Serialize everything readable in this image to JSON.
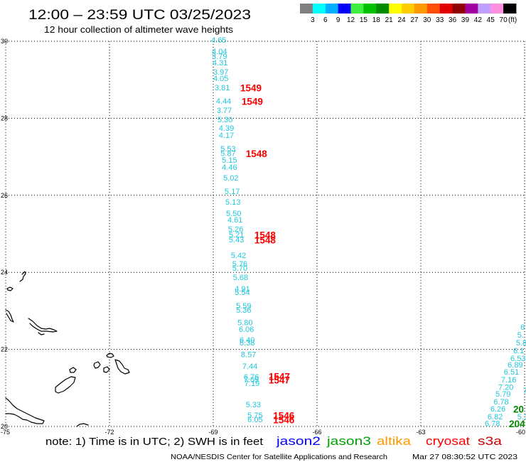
{
  "header": {
    "title": "12:00 – 23:59 UTC 03/25/2023",
    "subtitle": "12 hour collection of altimeter wave heights"
  },
  "legend": {
    "unit": "(ft)",
    "labels": [
      "3",
      "6",
      "9",
      "12",
      "15",
      "18",
      "21",
      "24",
      "27",
      "30",
      "33",
      "36",
      "39",
      "42",
      "45",
      "70"
    ],
    "colors": [
      "#808080",
      "#00ffff",
      "#00b0ff",
      "#0000ff",
      "#40f040",
      "#00c000",
      "#008c00",
      "#ffff00",
      "#ffcc00",
      "#ff9900",
      "#ff5000",
      "#e00000",
      "#900000",
      "#a000a0",
      "#c0a0ff",
      "#ff90e0",
      "#000000"
    ]
  },
  "chart_data": {
    "type": "scatter",
    "xlim": [
      -75,
      -60
    ],
    "ylim": [
      20,
      30
    ],
    "x_ticks": [
      "-75",
      "-72",
      "-69",
      "-66",
      "-63",
      "-60"
    ],
    "y_ticks": [
      "30",
      "28",
      "26",
      "24",
      "22",
      "20"
    ],
    "grid": true,
    "value_color": "#1ec8dc",
    "series": [
      {
        "time_color": "#ff0000",
        "points": [
          {
            "lon": -69.06,
            "lat": 30.02,
            "value": "4.65"
          },
          {
            "lon": -69.04,
            "lat": 29.72,
            "value": "4.04"
          },
          {
            "lon": -69.04,
            "lat": 29.59,
            "value": "3.79"
          },
          {
            "lon": -69.02,
            "lat": 29.43,
            "value": "4.31"
          },
          {
            "lon": -69.0,
            "lat": 29.19,
            "value": "3.97"
          },
          {
            "lon": -69.0,
            "lat": 29.02,
            "value": "4.05"
          },
          {
            "lon": -68.96,
            "lat": 28.78,
            "value": "3.81"
          },
          {
            "lon": -68.92,
            "lat": 28.43,
            "value": "4.44"
          },
          {
            "lon": -68.9,
            "lat": 28.19,
            "value": "3.77"
          },
          {
            "lon": -68.88,
            "lat": 27.95,
            "value": "5.30"
          },
          {
            "lon": -68.84,
            "lat": 27.73,
            "value": "4.39"
          },
          {
            "lon": -68.84,
            "lat": 27.55,
            "value": "4.17"
          },
          {
            "lon": -68.79,
            "lat": 27.2,
            "value": "5.53"
          },
          {
            "lon": -68.79,
            "lat": 27.08,
            "value": "5.87"
          },
          {
            "lon": -68.75,
            "lat": 26.9,
            "value": "5.15"
          },
          {
            "lon": -68.75,
            "lat": 26.72,
            "value": "4.46"
          },
          {
            "lon": -68.71,
            "lat": 26.44,
            "value": "5.02"
          },
          {
            "lon": -68.67,
            "lat": 26.09,
            "value": "5.17"
          },
          {
            "lon": -68.65,
            "lat": 25.81,
            "value": "5.13"
          },
          {
            "lon": -68.63,
            "lat": 25.52,
            "value": "5.50"
          },
          {
            "lon": -68.59,
            "lat": 25.35,
            "value": "4.61"
          },
          {
            "lon": -68.57,
            "lat": 25.11,
            "value": "5.26"
          },
          {
            "lon": -68.55,
            "lat": 24.96,
            "value": "5.21"
          },
          {
            "lon": -68.55,
            "lat": 24.83,
            "value": "5.43"
          },
          {
            "lon": -68.49,
            "lat": 24.43,
            "value": "5.42"
          },
          {
            "lon": -68.45,
            "lat": 24.21,
            "value": "5.76"
          },
          {
            "lon": -68.45,
            "lat": 24.1,
            "value": "5.70"
          },
          {
            "lon": -68.43,
            "lat": 23.86,
            "value": "5.68"
          },
          {
            "lon": -68.38,
            "lat": 23.56,
            "value": "4.91"
          },
          {
            "lon": -68.38,
            "lat": 23.47,
            "value": "5.54"
          },
          {
            "lon": -68.34,
            "lat": 23.12,
            "value": "5.59"
          },
          {
            "lon": -68.34,
            "lat": 23.01,
            "value": "5.36"
          },
          {
            "lon": -68.3,
            "lat": 22.68,
            "value": "5.80"
          },
          {
            "lon": -68.26,
            "lat": 22.51,
            "value": "6.06"
          },
          {
            "lon": -68.24,
            "lat": 22.23,
            "value": "6.40"
          },
          {
            "lon": -68.24,
            "lat": 22.16,
            "value": "6.38"
          },
          {
            "lon": -68.2,
            "lat": 21.85,
            "value": "8.57"
          },
          {
            "lon": -68.16,
            "lat": 21.55,
            "value": "7.44"
          },
          {
            "lon": -68.12,
            "lat": 21.27,
            "value": "6.76"
          },
          {
            "lon": -68.12,
            "lat": 21.2,
            "value": "7.09"
          },
          {
            "lon": -68.1,
            "lat": 21.11,
            "value": "7.19"
          },
          {
            "lon": -68.06,
            "lat": 20.55,
            "value": "5.33"
          },
          {
            "lon": -68.01,
            "lat": 20.28,
            "value": "5.75"
          },
          {
            "lon": -68.01,
            "lat": 20.17,
            "value": "6.05"
          }
        ],
        "time_labels": [
          {
            "lon": -68.22,
            "lat": 28.78,
            "text": "1549"
          },
          {
            "lon": -68.18,
            "lat": 28.43,
            "text": "1549"
          },
          {
            "lon": -68.06,
            "lat": 27.08,
            "text": "1548"
          },
          {
            "lon": -67.81,
            "lat": 24.96,
            "text": "1548"
          },
          {
            "lon": -67.81,
            "lat": 24.83,
            "text": "1548"
          },
          {
            "lon": -67.4,
            "lat": 21.29,
            "text": "1547"
          },
          {
            "lon": -67.4,
            "lat": 21.2,
            "text": "1547"
          },
          {
            "lon": -67.27,
            "lat": 20.28,
            "text": "1546"
          },
          {
            "lon": -67.27,
            "lat": 20.17,
            "text": "1546"
          }
        ]
      },
      {
        "time_color": "#008800",
        "points": [
          {
            "lon": -60.12,
            "lat": 22.56,
            "value": "6"
          },
          {
            "lon": -60.21,
            "lat": 22.36,
            "value": "5."
          },
          {
            "lon": -60.25,
            "lat": 22.16,
            "value": "5.8"
          },
          {
            "lon": -60.33,
            "lat": 21.96,
            "value": "6.1"
          },
          {
            "lon": -60.41,
            "lat": 21.75,
            "value": "6.53"
          },
          {
            "lon": -60.49,
            "lat": 21.59,
            "value": "6.89"
          },
          {
            "lon": -60.6,
            "lat": 21.4,
            "value": "6.51"
          },
          {
            "lon": -60.68,
            "lat": 21.2,
            "value": "7.16"
          },
          {
            "lon": -60.76,
            "lat": 21.01,
            "value": "7.20"
          },
          {
            "lon": -60.04,
            "lat": 20.92,
            "value": "7"
          },
          {
            "lon": -60.84,
            "lat": 20.83,
            "value": "5.79"
          },
          {
            "lon": -60.9,
            "lat": 20.63,
            "value": "6.78"
          },
          {
            "lon": -60.99,
            "lat": 20.44,
            "value": "6.26"
          },
          {
            "lon": -61.07,
            "lat": 20.24,
            "value": "6.82"
          },
          {
            "lon": -60.21,
            "lat": 20.24,
            "value": "5.1"
          },
          {
            "lon": -61.15,
            "lat": 20.06,
            "value": "6.78"
          }
        ],
        "time_labels": [
          {
            "lon": -60.33,
            "lat": 20.44,
            "text": "20"
          },
          {
            "lon": -60.45,
            "lat": 20.06,
            "text": "204"
          }
        ]
      }
    ]
  },
  "footer": {
    "note": "note: 1) Time is in UTC; 2) SWH is in feet",
    "satellites": [
      {
        "label": "jason2",
        "color": "#0000ff"
      },
      {
        "label": "jason3",
        "color": "#00a000"
      },
      {
        "label": "altika",
        "color": "#ff9900"
      },
      {
        "label": "cryosat",
        "color": "#ff0000"
      },
      {
        "label": "s3a",
        "color": "#cc0000"
      }
    ],
    "credit": "NOAA/NESDIS Center for Satellite Applications and Research",
    "timestamp": "Mar 27 08:30:52 UTC 2023"
  }
}
